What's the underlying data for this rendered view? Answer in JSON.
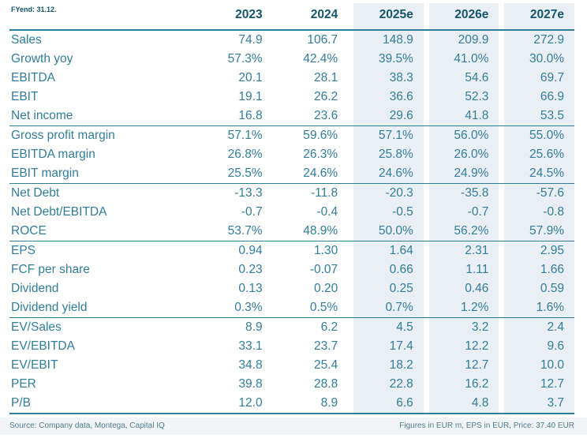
{
  "table": {
    "fyend_label": "FYend: 31.12.",
    "columns": [
      "2023",
      "2024",
      "2025e",
      "2026e",
      "2027e"
    ],
    "sections": [
      {
        "name": "pnl",
        "rows": [
          {
            "label": "Sales",
            "values": [
              "74.9",
              "106.7",
              "148.9",
              "209.9",
              "272.9"
            ]
          },
          {
            "label": "Growth yoy",
            "values": [
              "57.3%",
              "42.4%",
              "39.5%",
              "41.0%",
              "30.0%"
            ]
          },
          {
            "label": "EBITDA",
            "values": [
              "20.1",
              "28.1",
              "38.3",
              "54.6",
              "69.7"
            ]
          },
          {
            "label": "EBIT",
            "values": [
              "19.1",
              "26.2",
              "36.6",
              "52.3",
              "66.9"
            ]
          },
          {
            "label": "Net income",
            "values": [
              "16.8",
              "23.6",
              "29.6",
              "41.8",
              "53.5"
            ]
          }
        ]
      },
      {
        "name": "margins",
        "rows": [
          {
            "label": "Gross profit margin",
            "values": [
              "57.1%",
              "59.6%",
              "57.1%",
              "56.0%",
              "55.0%"
            ]
          },
          {
            "label": "EBITDA margin",
            "values": [
              "26.8%",
              "26.3%",
              "25.8%",
              "26.0%",
              "25.6%"
            ]
          },
          {
            "label": "EBIT margin",
            "values": [
              "25.5%",
              "24.6%",
              "24.6%",
              "24.9%",
              "24.5%"
            ]
          }
        ]
      },
      {
        "name": "debt",
        "rows": [
          {
            "label": "Net Debt",
            "values": [
              "-13.3",
              "-11.8",
              "-20.3",
              "-35.8",
              "-57.6"
            ]
          },
          {
            "label": "Net Debt/EBITDA",
            "values": [
              "-0.7",
              "-0.4",
              "-0.5",
              "-0.7",
              "-0.8"
            ]
          },
          {
            "label": "ROCE",
            "values": [
              "53.7%",
              "48.9%",
              "50.0%",
              "56.2%",
              "57.9%"
            ]
          }
        ]
      },
      {
        "name": "per-share",
        "rows": [
          {
            "label": "EPS",
            "values": [
              "0.94",
              "1.30",
              "1.64",
              "2.31",
              "2.95"
            ]
          },
          {
            "label": "FCF per share",
            "values": [
              "0.23",
              "-0.07",
              "0.66",
              "1.11",
              "1.66"
            ]
          },
          {
            "label": "Dividend",
            "values": [
              "0.13",
              "0.20",
              "0.25",
              "0.46",
              "0.59"
            ]
          },
          {
            "label": "Dividend yield",
            "values": [
              "0.3%",
              "0.5%",
              "0.7%",
              "1.2%",
              "1.6%"
            ]
          }
        ]
      },
      {
        "name": "valuation",
        "rows": [
          {
            "label": "EV/Sales",
            "values": [
              "8.9",
              "6.2",
              "4.5",
              "3.2",
              "2.4"
            ]
          },
          {
            "label": "EV/EBITDA",
            "values": [
              "33.1",
              "23.7",
              "17.4",
              "12.2",
              "9.6"
            ]
          },
          {
            "label": "EV/EBIT",
            "values": [
              "34.8",
              "25.4",
              "18.2",
              "12.7",
              "10.0"
            ]
          },
          {
            "label": "PER",
            "values": [
              "39.8",
              "28.8",
              "22.8",
              "16.2",
              "12.7"
            ]
          },
          {
            "label": "P/B",
            "values": [
              "12.0",
              "8.9",
              "6.6",
              "4.8",
              "3.7"
            ]
          }
        ]
      }
    ]
  },
  "footer": {
    "left": "Source: Company data, Montega, Capital IQ",
    "right": "Figures in EUR m, EPS in EUR, Price: 37.40 EUR"
  },
  "colors": {
    "body_text": "#327e9a",
    "header_text": "#14566d",
    "line": "#2e7d99",
    "estimate_column_bg": "#e9eff4",
    "footer_text": "#4f7d8e",
    "footer_bg": "#f2f5f6"
  }
}
